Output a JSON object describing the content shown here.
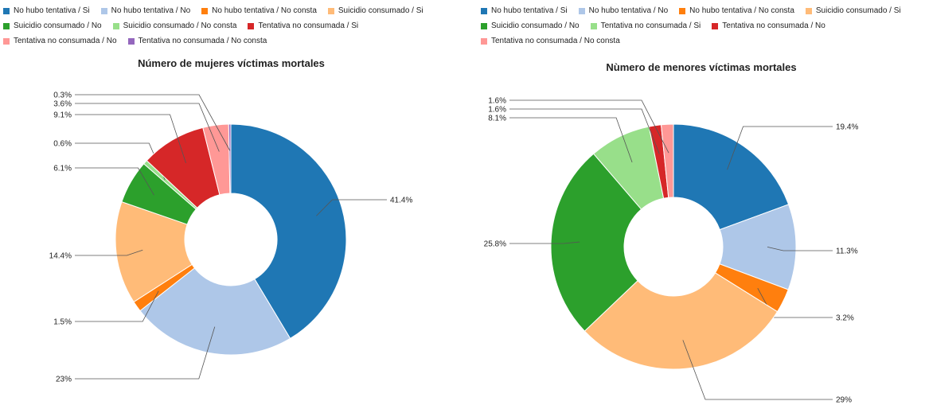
{
  "chart_data": [
    {
      "type": "pie",
      "donut": true,
      "title": "Número de mujeres víctimas mortales",
      "legend_position": "top",
      "categories": [
        "No hubo tentativa / Si",
        "No hubo tentativa / No",
        "No hubo tentativa / No consta",
        "Suicidio consumado / Si",
        "Suicidio consumado / No",
        "Suicidio consumado / No consta",
        "Tentativa no consumada / Si",
        "Tentativa no consumada / No",
        "Tentativa no consumada / No consta"
      ],
      "colors": [
        "#1f77b4",
        "#aec7e8",
        "#ff7f0e",
        "#ffbb78",
        "#2ca02c",
        "#98df8a",
        "#d62728",
        "#ff9896",
        "#9467bd"
      ],
      "values": [
        41.4,
        23,
        1.5,
        14.4,
        6.1,
        0.6,
        9.1,
        3.6,
        0.3
      ],
      "labels": [
        "41.4%",
        "23%",
        "1.5%",
        "14.4%",
        "6.1%",
        "0.6%",
        "9.1%",
        "3.6%",
        "0.3%"
      ]
    },
    {
      "type": "pie",
      "donut": true,
      "title": "Nùmero de menores víctimas mortales",
      "legend_position": "top",
      "categories": [
        "No hubo tentativa / Si",
        "No hubo tentativa / No",
        "No hubo tentativa / No consta",
        "Suicidio consumado / Si",
        "Suicidio consumado / No",
        "Tentativa no consumada / Si",
        "Tentativa no consumada / No",
        "Tentativa no consumada / No consta"
      ],
      "colors": [
        "#1f77b4",
        "#aec7e8",
        "#ff7f0e",
        "#ffbb78",
        "#2ca02c",
        "#98df8a",
        "#d62728",
        "#ff9896"
      ],
      "values": [
        19.4,
        11.3,
        3.2,
        29,
        25.8,
        8.1,
        1.6,
        1.6
      ],
      "labels": [
        "19.4%",
        "11.3%",
        "3.2%",
        "29%",
        "25.8%",
        "8.1%",
        "1.6%",
        "1.6%"
      ]
    }
  ]
}
